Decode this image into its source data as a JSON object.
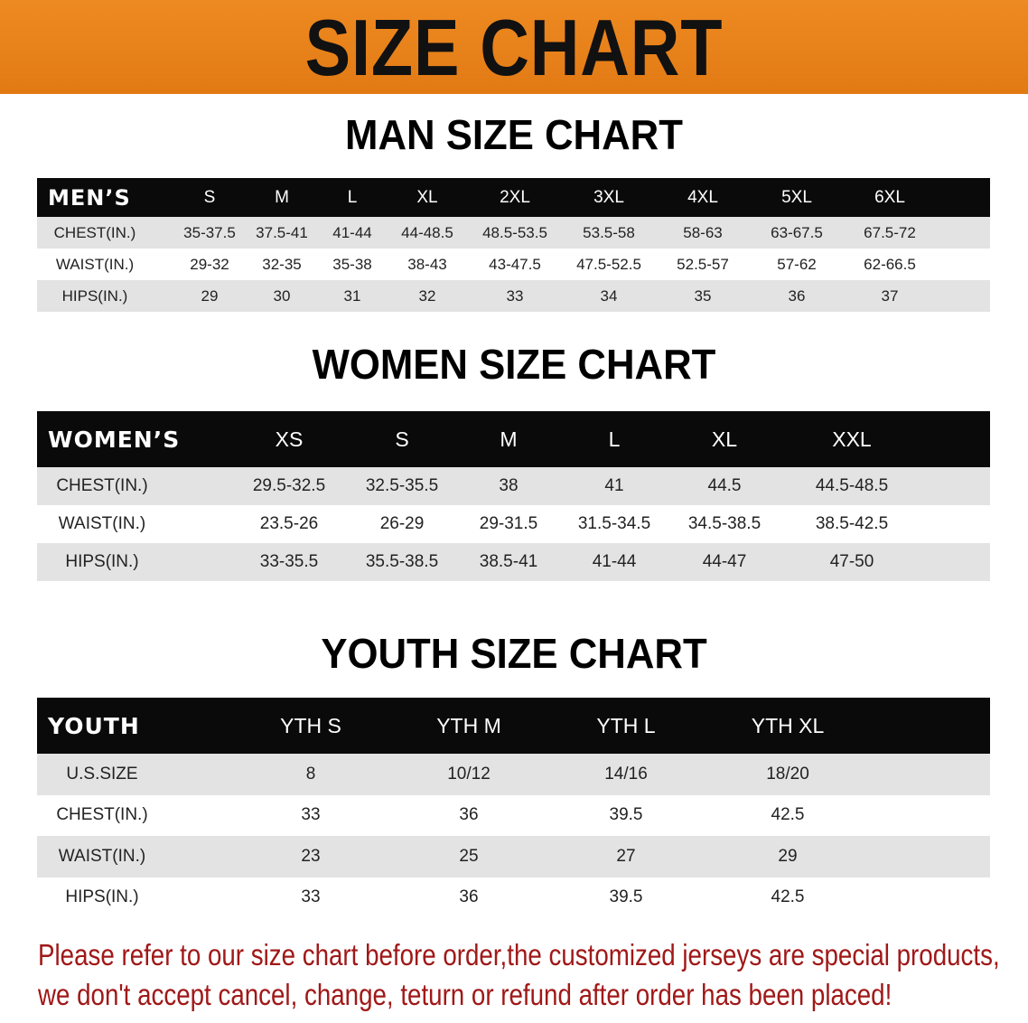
{
  "banner": {
    "title": "SIZE CHART",
    "color": "#e8801e"
  },
  "men": {
    "title": "MAN SIZE CHART",
    "header_label": "MEN’S",
    "sizes": [
      "S",
      "M",
      "L",
      "XL",
      "2XL",
      "3XL",
      "4XL",
      "5XL",
      "6XL"
    ],
    "rows": [
      {
        "label": "CHEST(IN.)",
        "values": [
          "35-37.5",
          "37.5-41",
          "41-44",
          "44-48.5",
          "48.5-53.5",
          "53.5-58",
          "58-63",
          "63-67.5",
          "67.5-72"
        ]
      },
      {
        "label": "WAIST(IN.)",
        "values": [
          "29-32",
          "32-35",
          "35-38",
          "38-43",
          "43-47.5",
          "47.5-52.5",
          "52.5-57",
          "57-62",
          "62-66.5"
        ]
      },
      {
        "label": "HIPS(IN.)",
        "values": [
          "29",
          "30",
          "31",
          "32",
          "33",
          "34",
          "35",
          "36",
          "37"
        ]
      }
    ]
  },
  "women": {
    "title": "WOMEN SIZE CHART",
    "header_label": "WOMEN’S",
    "sizes": [
      "XS",
      "S",
      "M",
      "L",
      "XL",
      "XXL"
    ],
    "rows": [
      {
        "label": "CHEST(IN.)",
        "values": [
          "29.5-32.5",
          "32.5-35.5",
          "38",
          "41",
          "44.5",
          "44.5-48.5"
        ]
      },
      {
        "label": "WAIST(IN.)",
        "values": [
          "23.5-26",
          "26-29",
          "29-31.5",
          "31.5-34.5",
          "34.5-38.5",
          "38.5-42.5"
        ]
      },
      {
        "label": "HIPS(IN.)",
        "values": [
          "33-35.5",
          "35.5-38.5",
          "38.5-41",
          "41-44",
          "44-47",
          "47-50"
        ]
      }
    ]
  },
  "youth": {
    "title": "YOUTH SIZE CHART",
    "header_label": "YOUTH",
    "sizes": [
      "YTH S",
      "YTH M",
      "YTH L",
      "YTH XL"
    ],
    "rows": [
      {
        "label": "U.S.SIZE",
        "values": [
          "8",
          "10/12",
          "14/16",
          "18/20"
        ]
      },
      {
        "label": "CHEST(IN.)",
        "values": [
          "33",
          "36",
          "39.5",
          "42.5"
        ]
      },
      {
        "label": "WAIST(IN.)",
        "values": [
          "23",
          "25",
          "27",
          "29"
        ]
      },
      {
        "label": "HIPS(IN.)",
        "values": [
          "33",
          "36",
          "39.5",
          "42.5"
        ]
      }
    ]
  },
  "note": {
    "line1": "Please refer to our size chart before order,the customized jerseys are special products,",
    "line2": "we don't accept cancel, change, teturn or refund after order has been placed!",
    "color": "#a01818"
  }
}
